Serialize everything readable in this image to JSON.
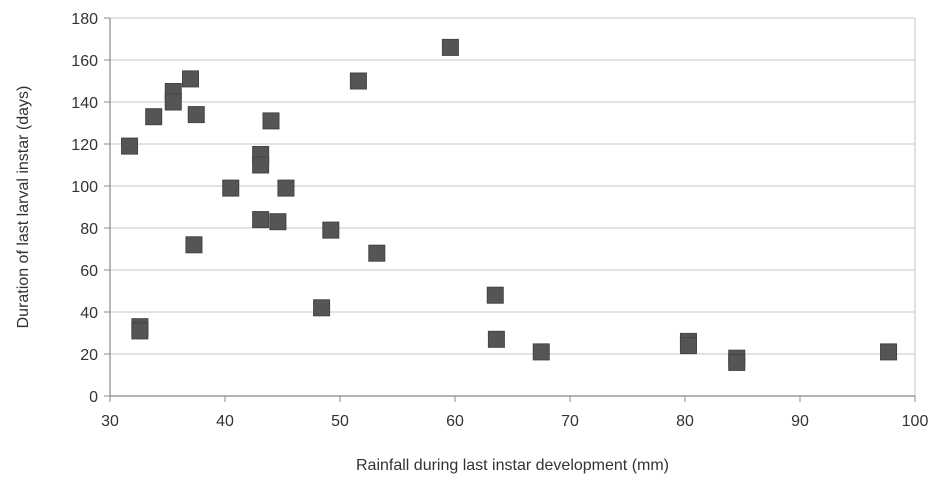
{
  "chart_data": {
    "type": "scatter",
    "title": "",
    "xlabel": "Rainfall during last instar development (mm)",
    "ylabel": "Duration of last larval instar (days)",
    "xlim": [
      30,
      100
    ],
    "ylim": [
      0,
      180
    ],
    "x_ticks": [
      30,
      40,
      50,
      60,
      70,
      80,
      90,
      100
    ],
    "y_ticks": [
      0,
      20,
      40,
      60,
      80,
      100,
      120,
      140,
      160,
      180
    ],
    "grid": "horizontal",
    "marker": "square",
    "colors": {
      "marker": "#555555",
      "grid": "#d0d0d0",
      "axis": "#888888"
    },
    "points": [
      {
        "x": 31.7,
        "y": 119
      },
      {
        "x": 32.6,
        "y": 33
      },
      {
        "x": 32.6,
        "y": 31
      },
      {
        "x": 33.8,
        "y": 133
      },
      {
        "x": 35.5,
        "y": 145
      },
      {
        "x": 35.5,
        "y": 140
      },
      {
        "x": 37.0,
        "y": 151
      },
      {
        "x": 37.5,
        "y": 134
      },
      {
        "x": 37.3,
        "y": 72
      },
      {
        "x": 40.5,
        "y": 99
      },
      {
        "x": 43.1,
        "y": 115
      },
      {
        "x": 43.1,
        "y": 110
      },
      {
        "x": 43.1,
        "y": 84
      },
      {
        "x": 44.0,
        "y": 131
      },
      {
        "x": 44.6,
        "y": 83
      },
      {
        "x": 45.3,
        "y": 99
      },
      {
        "x": 48.4,
        "y": 42
      },
      {
        "x": 49.2,
        "y": 79
      },
      {
        "x": 51.6,
        "y": 150
      },
      {
        "x": 53.2,
        "y": 68
      },
      {
        "x": 59.6,
        "y": 166
      },
      {
        "x": 63.5,
        "y": 48
      },
      {
        "x": 63.6,
        "y": 27
      },
      {
        "x": 67.5,
        "y": 21
      },
      {
        "x": 80.3,
        "y": 26
      },
      {
        "x": 80.3,
        "y": 24
      },
      {
        "x": 84.5,
        "y": 18
      },
      {
        "x": 84.5,
        "y": 16
      },
      {
        "x": 97.7,
        "y": 21
      }
    ]
  }
}
